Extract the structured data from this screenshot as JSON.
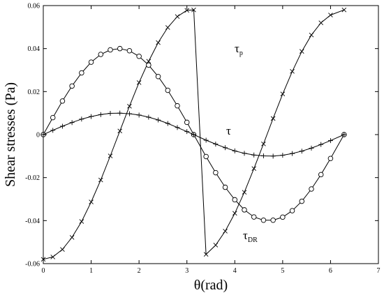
{
  "chart_data": {
    "type": "line",
    "xlabel": "θ(rad)",
    "ylabel": "Shear stresses (Pa)",
    "xlim": [
      0,
      7
    ],
    "ylim": [
      -0.06,
      0.06
    ],
    "xticks": [
      0,
      1,
      2,
      3,
      4,
      5,
      6,
      7
    ],
    "xtick_labels": [
      "0",
      "1",
      "2",
      "3",
      "4",
      "5",
      "6",
      "7"
    ],
    "yticks": [
      -0.06,
      -0.04,
      -0.02,
      0,
      0.02,
      0.04,
      0.06
    ],
    "ytick_labels": [
      "-0.06",
      "-0.04",
      "-0.02",
      "0",
      "0.02",
      "0.04",
      "0.06"
    ],
    "grid": false,
    "legend": "inline labels",
    "series": [
      {
        "name": "τp",
        "label_main": "τ",
        "label_sub": "p",
        "marker": "x",
        "x": [
          0,
          0.2,
          0.4,
          0.6,
          0.8,
          1.0,
          1.2,
          1.4,
          1.6,
          1.8,
          2.0,
          2.2,
          2.4,
          2.6,
          2.8,
          3.0,
          3.142,
          3.4,
          3.6,
          3.8,
          4.0,
          4.2,
          4.4,
          4.6,
          4.8,
          5.0,
          5.2,
          5.4,
          5.6,
          5.8,
          6.0,
          6.283
        ],
        "y": [
          -0.058,
          -0.0569,
          -0.0534,
          -0.0478,
          -0.0404,
          -0.0313,
          -0.0211,
          -0.0099,
          0.0017,
          0.0132,
          0.0242,
          0.0341,
          0.0428,
          0.0498,
          0.0549,
          0.0578,
          0.058,
          -0.0557,
          -0.0514,
          -0.0449,
          -0.0366,
          -0.0268,
          -0.0158,
          -0.0043,
          0.0075,
          0.0189,
          0.0294,
          0.0387,
          0.0463,
          0.052,
          0.0556,
          0.058
        ]
      },
      {
        "name": "τDR",
        "label_main": "τ",
        "label_sub": "DR",
        "marker": "circle",
        "x": [
          0,
          0.2,
          0.4,
          0.6,
          0.8,
          1.0,
          1.2,
          1.4,
          1.6,
          1.8,
          2.0,
          2.2,
          2.4,
          2.6,
          2.8,
          3.0,
          3.142,
          3.4,
          3.6,
          3.8,
          4.0,
          4.2,
          4.4,
          4.6,
          4.8,
          5.0,
          5.2,
          5.4,
          5.6,
          5.8,
          6.0,
          6.283
        ],
        "y": [
          0,
          0.0079,
          0.0156,
          0.0226,
          0.0287,
          0.0337,
          0.0373,
          0.0394,
          0.04,
          0.039,
          0.0364,
          0.0323,
          0.027,
          0.0206,
          0.0134,
          0.0057,
          0,
          -0.0102,
          -0.0177,
          -0.0245,
          -0.0303,
          -0.035,
          -0.0383,
          -0.0398,
          -0.0398,
          -0.0384,
          -0.0354,
          -0.031,
          -0.0253,
          -0.0186,
          -0.0111,
          0
        ]
      },
      {
        "name": "τ",
        "label_main": "τ",
        "label_sub": "",
        "marker": "plus",
        "x": [
          0,
          0.2,
          0.4,
          0.6,
          0.8,
          1.0,
          1.2,
          1.4,
          1.6,
          1.8,
          2.0,
          2.2,
          2.4,
          2.6,
          2.8,
          3.0,
          3.142,
          3.4,
          3.6,
          3.8,
          4.0,
          4.2,
          4.4,
          4.6,
          4.8,
          5.0,
          5.2,
          5.4,
          5.6,
          5.8,
          6.0,
          6.283
        ],
        "y": [
          0,
          0.002,
          0.0039,
          0.0056,
          0.0072,
          0.0084,
          0.0093,
          0.0099,
          0.01,
          0.0097,
          0.0091,
          0.0081,
          0.0068,
          0.0052,
          0.0033,
          0.0014,
          0,
          -0.0026,
          -0.0044,
          -0.0061,
          -0.0076,
          -0.0087,
          -0.0095,
          -0.0099,
          -0.01,
          -0.0096,
          -0.0088,
          -0.0077,
          -0.0063,
          -0.0046,
          -0.0028,
          0
        ]
      }
    ]
  }
}
